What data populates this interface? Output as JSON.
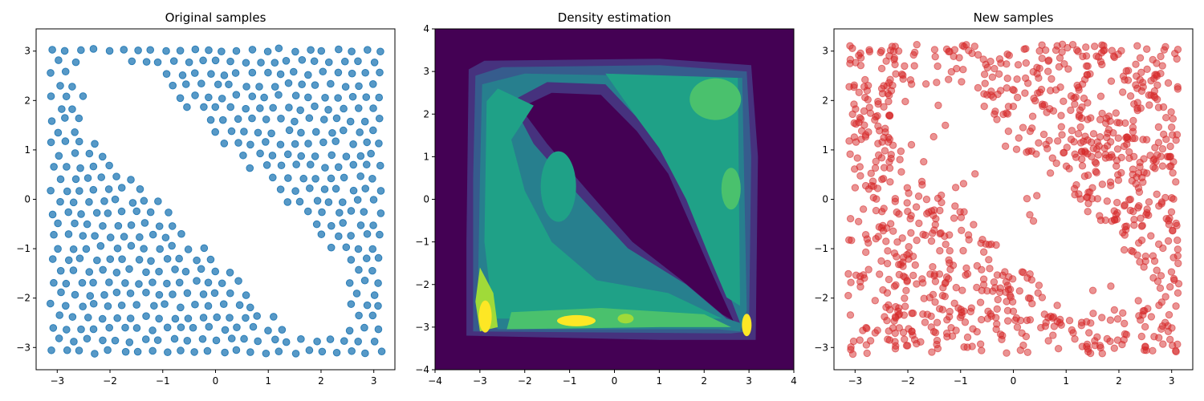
{
  "chart_data": [
    {
      "type": "scatter",
      "title": "Original samples",
      "xlabel": "",
      "ylabel": "",
      "xlim": [
        -3.4,
        3.4
      ],
      "ylim": [
        -3.45,
        3.45
      ],
      "xticks": [
        -3,
        -2,
        -1,
        0,
        1,
        2,
        3
      ],
      "yticks": [
        -3,
        -2,
        -1,
        0,
        1,
        2,
        3
      ],
      "grid": false,
      "marker_color": "#1f77b4",
      "marker_alpha": 0.75,
      "description_of_distribution": "uniform grid-like points over [-pi, pi]^2 except an empty diagonal band from upper-left to lower-right",
      "series": [
        {
          "points_generation": {
            "domain": [
              -3.14,
              3.14
            ],
            "count_approx": 470,
            "excluded_region": "band around the line y = -1.1*x with half-width about 0.9 between x = -2.6 and x = 2.6"
          }
        }
      ]
    },
    {
      "type": "heatmap",
      "subtype": "filled-contour",
      "title": "Density estimation",
      "xlabel": "",
      "ylabel": "",
      "xlim": [
        -4,
        4
      ],
      "ylim": [
        -4,
        4
      ],
      "xticks": [
        -4,
        -3,
        -2,
        -1,
        0,
        1,
        2,
        3,
        4
      ],
      "yticks": [
        -4,
        -3,
        -2,
        -1,
        0,
        1,
        2,
        3,
        4
      ],
      "colormap": [
        "#440154",
        "#46327e",
        "#365c8d",
        "#277f8e",
        "#1fa187",
        "#4ac16d",
        "#a0da39",
        "#fde725"
      ],
      "background_level_color": "#440154",
      "high_density_regions": [
        {
          "x": 2.3,
          "y": 2.4,
          "level": 5
        },
        {
          "x": 2.6,
          "y": 0.3,
          "level": 5
        },
        {
          "x": -1.2,
          "y": 0.3,
          "level": 4
        },
        {
          "x": -2.9,
          "y": -2.7,
          "level": 7
        },
        {
          "x": -0.8,
          "y": -2.85,
          "level": 7
        },
        {
          "x": 0.2,
          "y": -2.8,
          "level": 6
        },
        {
          "x": 2.95,
          "y": -2.9,
          "level": 7
        }
      ]
    },
    {
      "type": "scatter",
      "title": "New samples",
      "xlabel": "",
      "ylabel": "",
      "xlim": [
        -3.4,
        3.4
      ],
      "ylim": [
        -3.45,
        3.45
      ],
      "xticks": [
        -3,
        -2,
        -1,
        0,
        1,
        2,
        3
      ],
      "yticks": [
        -3,
        -2,
        -1,
        0,
        1,
        2,
        3
      ],
      "grid": false,
      "marker_color": "#d62728",
      "marker_alpha": 0.5,
      "series": [
        {
          "points_generation": {
            "domain": [
              -3.14,
              3.14
            ],
            "count_approx": 1000,
            "excluded_region": "sparser diagonal band from upper-left to lower-right, thinning around the center"
          }
        }
      ]
    }
  ]
}
